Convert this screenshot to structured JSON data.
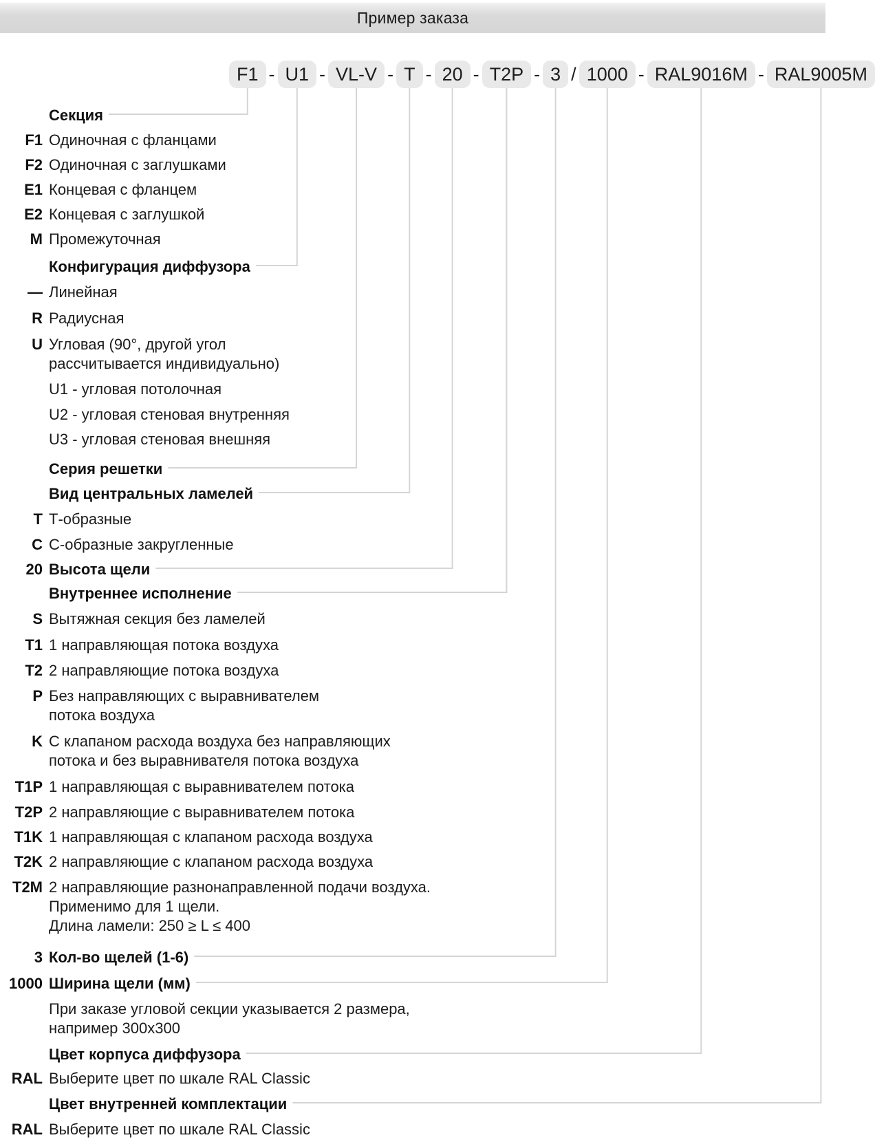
{
  "header": {
    "title": "Пример заказа"
  },
  "order_code": {
    "segments": [
      "F1",
      "U1",
      "VL-V",
      "T",
      "20",
      "T2P",
      "3",
      "1000",
      "RAL9016M",
      "RAL9005M"
    ],
    "separators": [
      "-",
      "-",
      "-",
      "-",
      "-",
      "-",
      "/",
      "-",
      "-"
    ]
  },
  "legend": {
    "rows": [
      {
        "code": "",
        "heading": true,
        "lines": [
          "Секция"
        ],
        "connects_segment": 0
      },
      {
        "code": "F1",
        "heading": false,
        "lines": [
          "Одиночная с фланцами"
        ]
      },
      {
        "code": "F2",
        "heading": false,
        "lines": [
          "Одиночная с заглушками"
        ]
      },
      {
        "code": "E1",
        "heading": false,
        "lines": [
          "Концевая с фланцем"
        ]
      },
      {
        "code": "E2",
        "heading": false,
        "lines": [
          "Концевая с заглушкой"
        ]
      },
      {
        "code": "M",
        "heading": false,
        "lines": [
          "Промежуточная"
        ]
      },
      {
        "code": "",
        "heading": true,
        "lines": [
          "Конфигурация диффузора"
        ],
        "connects_segment": 1
      },
      {
        "code": "—",
        "heading": false,
        "lines": [
          "Линейная"
        ]
      },
      {
        "code": "R",
        "heading": false,
        "lines": [
          "Радиусная"
        ]
      },
      {
        "code": "U",
        "heading": false,
        "lines": [
          "Угловая (90°, другой угол",
          "рассчитывается индивидуально)"
        ]
      },
      {
        "code": "",
        "heading": false,
        "lines": [
          "U1 - угловая потолочная"
        ]
      },
      {
        "code": "",
        "heading": false,
        "lines": [
          "U2 - угловая стеновая внутренняя"
        ]
      },
      {
        "code": "",
        "heading": false,
        "lines": [
          "U3 - угловая стеновая внешняя"
        ]
      },
      {
        "code": "",
        "heading": true,
        "lines": [
          "Серия решетки"
        ],
        "connects_segment": 2
      },
      {
        "code": "",
        "heading": true,
        "lines": [
          "Вид центральных ламелей"
        ],
        "connects_segment": 3
      },
      {
        "code": "T",
        "heading": false,
        "lines": [
          "Т-образные"
        ]
      },
      {
        "code": "C",
        "heading": false,
        "lines": [
          "С-образные закругленные"
        ]
      },
      {
        "code": "20",
        "heading": true,
        "lines": [
          "Высота щели"
        ],
        "connects_segment": 4
      },
      {
        "code": "",
        "heading": true,
        "lines": [
          "Внутреннее исполнение"
        ],
        "connects_segment": 5
      },
      {
        "code": "S",
        "heading": false,
        "lines": [
          "Вытяжная секция без ламелей"
        ]
      },
      {
        "code": "T1",
        "heading": false,
        "lines": [
          "1 направляющая потока воздуха"
        ]
      },
      {
        "code": "T2",
        "heading": false,
        "lines": [
          "2 направляющие потока воздуха"
        ]
      },
      {
        "code": "P",
        "heading": false,
        "lines": [
          "Без направляющих с выравнивателем",
          "потока воздуха"
        ]
      },
      {
        "code": "K",
        "heading": false,
        "lines": [
          "С клапаном расхода воздуха без направляющих",
          "потока и без выравнивателя потока воздуха"
        ]
      },
      {
        "code": "T1P",
        "heading": false,
        "lines": [
          "1 направляющая с выравнивателем потока"
        ]
      },
      {
        "code": "T2P",
        "heading": false,
        "lines": [
          "2 направляющие с выравнивателем потока"
        ]
      },
      {
        "code": "T1K",
        "heading": false,
        "lines": [
          "1 направляющая с клапаном расхода воздуха"
        ]
      },
      {
        "code": "T2K",
        "heading": false,
        "lines": [
          "2 направляющие с клапаном расхода воздуха"
        ]
      },
      {
        "code": "T2M",
        "heading": false,
        "lines": [
          "2 направляющие разнонаправленной подачи воздуха.",
          "Применимо для 1 щели.",
          "Длина ламели: 250 ≥ L ≤ 400"
        ]
      },
      {
        "code": "3",
        "heading": true,
        "lines": [
          "Кол-во щелей (1-6)"
        ],
        "connects_segment": 6
      },
      {
        "code": "1000",
        "heading": true,
        "lines": [
          "Ширина щели (мм)"
        ],
        "connects_segment": 7
      },
      {
        "code": "",
        "heading": false,
        "lines": [
          "При заказе угловой секции указывается 2 размера,",
          "например 300x300"
        ]
      },
      {
        "code": "",
        "heading": true,
        "lines": [
          "Цвет корпуса диффузора"
        ],
        "connects_segment": 8
      },
      {
        "code": "RAL",
        "heading": false,
        "lines": [
          "Выберите цвет по шкале RAL Classic"
        ]
      },
      {
        "code": "",
        "heading": true,
        "lines": [
          "Цвет внутренней комплектации"
        ],
        "connects_segment": 9
      },
      {
        "code": "RAL",
        "heading": false,
        "lines": [
          "Выберите цвет по шкале RAL Classic"
        ]
      }
    ]
  },
  "colors": {
    "header_bg": "#d8d8d8",
    "code_box_bg": "#e9e9e9",
    "connector": "#d5d5d5",
    "text": "#1c1c1e"
  }
}
